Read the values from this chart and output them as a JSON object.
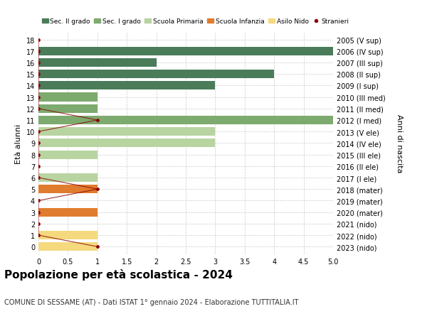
{
  "ages": [
    18,
    17,
    16,
    15,
    14,
    13,
    12,
    11,
    10,
    9,
    8,
    7,
    6,
    5,
    4,
    3,
    2,
    1,
    0
  ],
  "right_labels": [
    "2005 (V sup)",
    "2006 (IV sup)",
    "2007 (III sup)",
    "2008 (II sup)",
    "2009 (I sup)",
    "2010 (III med)",
    "2011 (II med)",
    "2012 (I med)",
    "2013 (V ele)",
    "2014 (IV ele)",
    "2015 (III ele)",
    "2016 (II ele)",
    "2017 (I ele)",
    "2018 (mater)",
    "2019 (mater)",
    "2020 (mater)",
    "2021 (nido)",
    "2022 (nido)",
    "2023 (nido)"
  ],
  "bar_values": [
    0,
    5,
    2,
    4,
    3,
    1,
    1,
    5,
    3,
    3,
    1,
    0,
    1,
    1,
    0,
    1,
    0,
    1,
    1
  ],
  "bar_colors": [
    "#4a7c59",
    "#4a7c59",
    "#4a7c59",
    "#4a7c59",
    "#4a7c59",
    "#7daa6e",
    "#7daa6e",
    "#7daa6e",
    "#b8d4a0",
    "#b8d4a0",
    "#b8d4a0",
    "#b8d4a0",
    "#b8d4a0",
    "#e07c2e",
    "#e07c2e",
    "#e07c2e",
    "#f5d97e",
    "#f5d97e",
    "#f5d97e"
  ],
  "stranieri_values": [
    0,
    0,
    0,
    0,
    0,
    0,
    0,
    1,
    0,
    0,
    0,
    0,
    0,
    1,
    0,
    0,
    0,
    0,
    1
  ],
  "stranieri_color": "#8b0000",
  "legend_labels": [
    "Sec. II grado",
    "Sec. I grado",
    "Scuola Primaria",
    "Scuola Infanzia",
    "Asilo Nido",
    "Stranieri"
  ],
  "legend_colors": [
    "#4a7c59",
    "#7daa6e",
    "#b8d4a0",
    "#e07c2e",
    "#f5d97e",
    "#8b0000"
  ],
  "title": "Popolazione per età scolastica - 2024",
  "subtitle": "COMUNE DI SESSAME (AT) - Dati ISTAT 1° gennaio 2024 - Elaborazione TUTTITALIA.IT",
  "ylabel_left": "Età alunni",
  "ylabel_right": "Anni di nascita",
  "xlim": [
    0,
    5.0
  ],
  "bg_color": "#ffffff",
  "grid_color": "#cccccc",
  "bar_height": 0.75,
  "title_fontsize": 11,
  "subtitle_fontsize": 7,
  "tick_fontsize": 7,
  "label_fontsize": 8,
  "legend_fontsize": 6.5
}
